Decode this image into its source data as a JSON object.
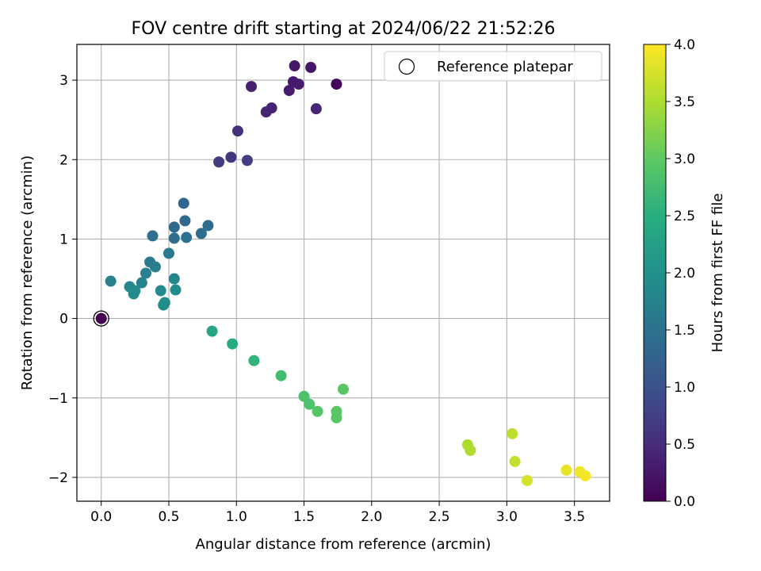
{
  "chart_data": {
    "type": "scatter",
    "title": "FOV centre drift starting at 2024/06/22 21:52:26",
    "xlabel": "Angular distance from reference (arcmin)",
    "ylabel": "Rotation from reference (arcmin)",
    "xlim": [
      -0.18,
      3.76
    ],
    "ylim": [
      -2.3,
      3.45
    ],
    "xticks": [
      0.0,
      0.5,
      1.0,
      1.5,
      2.0,
      2.5,
      3.0,
      3.5
    ],
    "xtick_labels": [
      "0.0",
      "0.5",
      "1.0",
      "1.5",
      "2.0",
      "2.5",
      "3.0",
      "3.5"
    ],
    "yticks": [
      -2,
      -1,
      0,
      1,
      2,
      3
    ],
    "ytick_labels": [
      "−2",
      "−1",
      "0",
      "1",
      "2",
      "3"
    ],
    "grid": true,
    "legend": {
      "position": "top-right",
      "entries": [
        "Reference platepar"
      ]
    },
    "colorbar": {
      "label": "Hours from first FF file",
      "min": 0.0,
      "max": 4.0,
      "colormap": "viridis",
      "ticks": [
        0.0,
        0.5,
        1.0,
        1.5,
        2.0,
        2.5,
        3.0,
        3.5,
        4.0
      ],
      "tick_labels": [
        "0.0",
        "0.5",
        "1.0",
        "1.5",
        "2.0",
        "2.5",
        "3.0",
        "3.5",
        "4.0"
      ]
    },
    "reference_point": {
      "x": 0.0,
      "y": 0.0
    },
    "points": [
      {
        "x": 0.0,
        "y": 0.0,
        "c": 0.0
      },
      {
        "x": 1.74,
        "y": 2.95,
        "c": 0.05
      },
      {
        "x": 1.43,
        "y": 3.18,
        "c": 0.25
      },
      {
        "x": 1.55,
        "y": 3.16,
        "c": 0.25
      },
      {
        "x": 1.42,
        "y": 2.98,
        "c": 0.3
      },
      {
        "x": 1.46,
        "y": 2.95,
        "c": 0.3
      },
      {
        "x": 1.39,
        "y": 2.87,
        "c": 0.32
      },
      {
        "x": 1.11,
        "y": 2.92,
        "c": 0.35
      },
      {
        "x": 1.26,
        "y": 2.65,
        "c": 0.38
      },
      {
        "x": 1.22,
        "y": 2.6,
        "c": 0.4
      },
      {
        "x": 1.59,
        "y": 2.64,
        "c": 0.42
      },
      {
        "x": 1.01,
        "y": 2.36,
        "c": 0.55
      },
      {
        "x": 0.96,
        "y": 2.03,
        "c": 0.65
      },
      {
        "x": 0.87,
        "y": 1.97,
        "c": 0.7
      },
      {
        "x": 1.08,
        "y": 1.99,
        "c": 0.72
      },
      {
        "x": 0.61,
        "y": 1.45,
        "c": 1.3
      },
      {
        "x": 0.62,
        "y": 1.23,
        "c": 1.35
      },
      {
        "x": 0.54,
        "y": 1.15,
        "c": 1.38
      },
      {
        "x": 0.79,
        "y": 1.17,
        "c": 1.4
      },
      {
        "x": 0.74,
        "y": 1.07,
        "c": 1.42
      },
      {
        "x": 0.38,
        "y": 1.04,
        "c": 1.45
      },
      {
        "x": 0.54,
        "y": 1.01,
        "c": 1.45
      },
      {
        "x": 0.63,
        "y": 1.02,
        "c": 1.48
      },
      {
        "x": 0.5,
        "y": 0.82,
        "c": 1.6
      },
      {
        "x": 0.36,
        "y": 0.71,
        "c": 1.65
      },
      {
        "x": 0.4,
        "y": 0.65,
        "c": 1.7
      },
      {
        "x": 0.33,
        "y": 0.57,
        "c": 1.72
      },
      {
        "x": 0.07,
        "y": 0.47,
        "c": 1.75
      },
      {
        "x": 0.3,
        "y": 0.45,
        "c": 1.78
      },
      {
        "x": 0.54,
        "y": 0.5,
        "c": 1.82
      },
      {
        "x": 0.21,
        "y": 0.4,
        "c": 1.85
      },
      {
        "x": 0.25,
        "y": 0.35,
        "c": 1.85
      },
      {
        "x": 0.24,
        "y": 0.31,
        "c": 1.88
      },
      {
        "x": 0.44,
        "y": 0.35,
        "c": 1.9
      },
      {
        "x": 0.55,
        "y": 0.36,
        "c": 1.9
      },
      {
        "x": 0.47,
        "y": 0.2,
        "c": 1.95
      },
      {
        "x": 0.46,
        "y": 0.17,
        "c": 1.95
      },
      {
        "x": 0.82,
        "y": -0.16,
        "c": 2.35
      },
      {
        "x": 0.97,
        "y": -0.32,
        "c": 2.45
      },
      {
        "x": 1.13,
        "y": -0.53,
        "c": 2.6
      },
      {
        "x": 1.33,
        "y": -0.72,
        "c": 2.75
      },
      {
        "x": 1.79,
        "y": -0.89,
        "c": 2.95
      },
      {
        "x": 1.5,
        "y": -0.98,
        "c": 2.85
      },
      {
        "x": 1.54,
        "y": -1.08,
        "c": 2.85
      },
      {
        "x": 1.6,
        "y": -1.17,
        "c": 2.9
      },
      {
        "x": 1.74,
        "y": -1.17,
        "c": 2.95
      },
      {
        "x": 1.74,
        "y": -1.25,
        "c": 2.95
      },
      {
        "x": 2.71,
        "y": -1.59,
        "c": 3.5
      },
      {
        "x": 2.73,
        "y": -1.66,
        "c": 3.52
      },
      {
        "x": 3.04,
        "y": -1.45,
        "c": 3.6
      },
      {
        "x": 3.06,
        "y": -1.8,
        "c": 3.65
      },
      {
        "x": 3.15,
        "y": -2.04,
        "c": 3.75
      },
      {
        "x": 3.44,
        "y": -1.91,
        "c": 3.88
      },
      {
        "x": 3.54,
        "y": -1.93,
        "c": 3.92
      },
      {
        "x": 3.58,
        "y": -1.98,
        "c": 3.95
      }
    ]
  }
}
